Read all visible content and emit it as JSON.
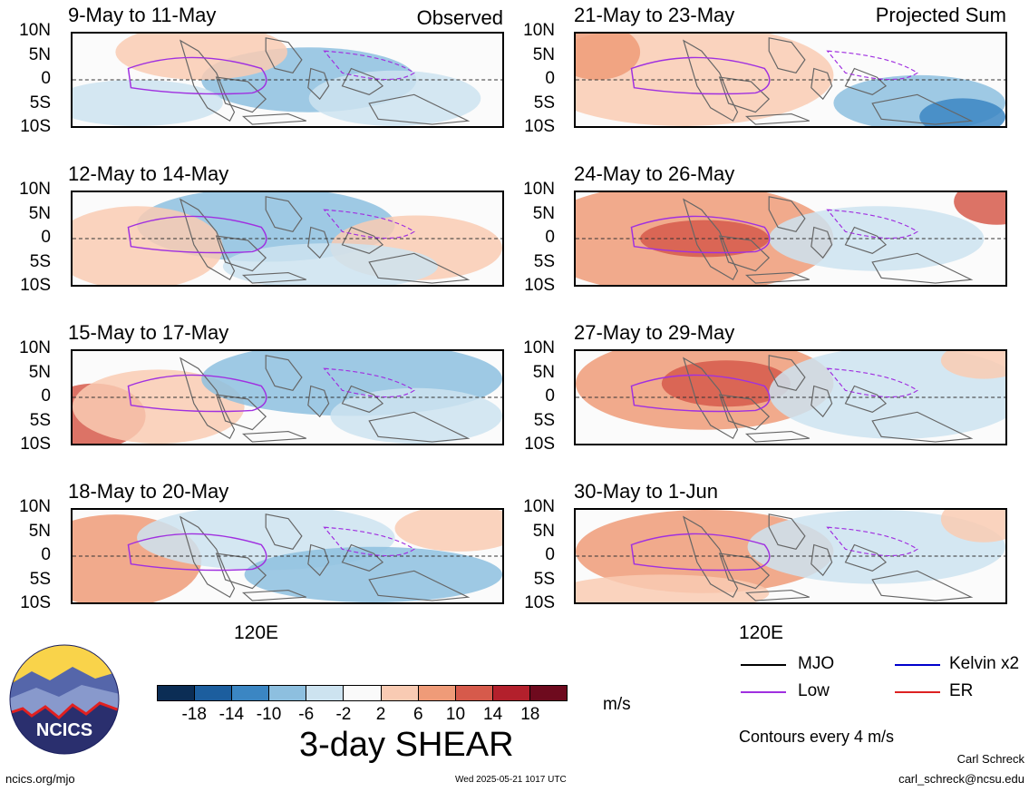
{
  "panels_left": [
    {
      "title": "9-May to 11-May",
      "corner_label": "Observed"
    },
    {
      "title": "12-May to 14-May",
      "corner_label": ""
    },
    {
      "title": "15-May to 17-May",
      "corner_label": ""
    },
    {
      "title": "18-May to 20-May",
      "corner_label": ""
    }
  ],
  "panels_right": [
    {
      "title": "21-May to 23-May",
      "corner_label": "Projected Sum"
    },
    {
      "title": "24-May to 26-May",
      "corner_label": ""
    },
    {
      "title": "27-May to 29-May",
      "corner_label": ""
    },
    {
      "title": "30-May to 1-Jun",
      "corner_label": ""
    }
  ],
  "lat_labels": [
    "10N",
    "5N",
    "0",
    "5S",
    "10S"
  ],
  "lon_label": "120E",
  "colorbar": {
    "ticks": [
      "-18",
      "-14",
      "-10",
      "-6",
      "-2",
      "2",
      "6",
      "10",
      "14",
      "18"
    ],
    "colors": [
      "#0b2d55",
      "#1c5e9e",
      "#3b86c3",
      "#8dbfdf",
      "#cde3f0",
      "#fafafa",
      "#f9cbb3",
      "#ef9b78",
      "#d65a4b",
      "#b3202c",
      "#6e0a1e"
    ],
    "title": "3-day SHEAR",
    "units": "m/s"
  },
  "legend": {
    "mjo": {
      "label": "MJO",
      "color": "#000000"
    },
    "kelvin": {
      "label": "Kelvin x2",
      "color": "#0000cc"
    },
    "low": {
      "label": "Low",
      "color": "#a030e0"
    },
    "er": {
      "label": "ER",
      "color": "#dd2222"
    },
    "note": "Contours every 4 m/s"
  },
  "footer": {
    "site": "ncics.org/mjo",
    "timestamp": "Wed 2025-05-21 1017 UTC",
    "author": "Carl Schreck",
    "email": "carl_schreck@ncsu.edu",
    "logo_text": "NCICS"
  }
}
